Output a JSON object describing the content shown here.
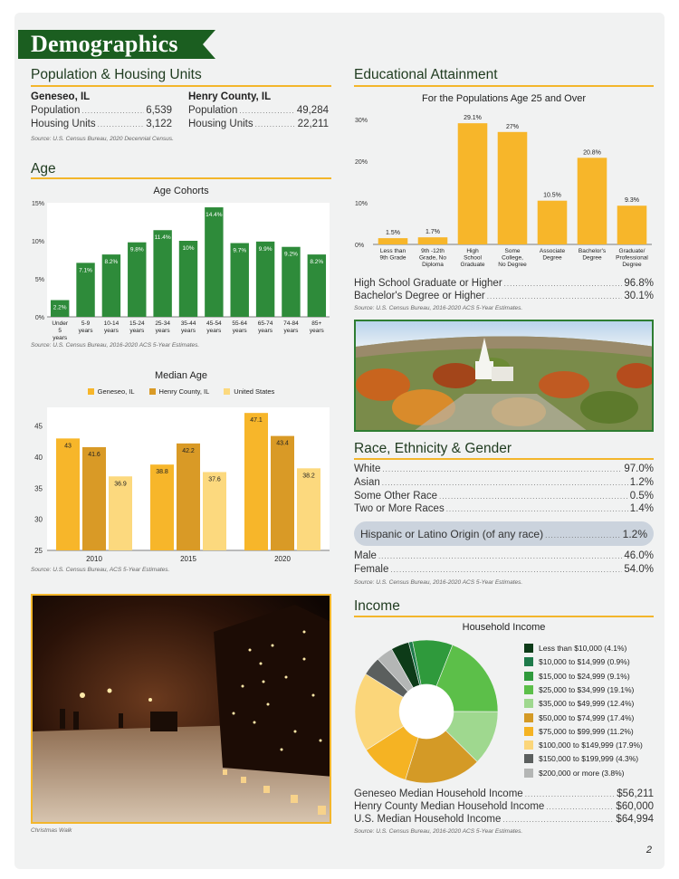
{
  "page": {
    "banner_title": "Demographics",
    "page_number": "2",
    "colors": {
      "green_dark": "#1b5e20",
      "gold": "#f3b62b",
      "bg": "#f1f2f2"
    }
  },
  "population": {
    "heading": "Population & Housing Units",
    "geneseo": {
      "name": "Geneseo, IL",
      "population_label": "Population",
      "population": "6,539",
      "housing_label": "Housing Units",
      "housing": "3,122"
    },
    "henry": {
      "name": "Henry County, IL",
      "population_label": "Population",
      "population": "49,284",
      "housing_label": "Housing Units",
      "housing": "22,211"
    },
    "source": "Source: U.S. Census Bureau, 2020 Decennial Census."
  },
  "age": {
    "heading": "Age",
    "source": "Source: U.S. Census Bureau, 2016-2020 ACS 5-Year Estimates.",
    "median_source": "Source: U.S. Census Bureau, ACS 5-Year Estimates."
  },
  "education": {
    "heading": "Educational Attainment",
    "rows": [
      {
        "label": "High School Graduate or Higher",
        "value": "96.8%"
      },
      {
        "label": "Bachelor's Degree or Higher",
        "value": "30.1%"
      }
    ],
    "source": "Source: U.S. Census Bureau, 2016-2020 ACS 5-Year Estimates."
  },
  "race": {
    "heading": "Race, Ethnicity & Gender",
    "rows": [
      {
        "label": "White",
        "value": "97.0%"
      },
      {
        "label": "Asian",
        "value": "1.2%"
      },
      {
        "label": "Some Other Race",
        "value": "0.5%"
      },
      {
        "label": "Two or More Races",
        "value": "1.4%"
      }
    ],
    "hispanic": {
      "label": "Hispanic or Latino Origin (of any race)",
      "value": "1.2%"
    },
    "gender": [
      {
        "label": "Male",
        "value": "46.0%"
      },
      {
        "label": "Female",
        "value": "54.0%"
      }
    ],
    "source": "Source: U.S. Census Bureau, 2016-2020 ACS 5-Year Estimates."
  },
  "income": {
    "heading": "Income",
    "rows": [
      {
        "label": "Geneseo Median Household Income",
        "value": "$56,211"
      },
      {
        "label": "Henry County Median Household Income",
        "value": "$60,000"
      },
      {
        "label": "U.S. Median Household Income",
        "value": "$64,994"
      }
    ],
    "source": "Source: U.S. Census Bureau, 2016-2020 ACS 5-Year Estimates."
  },
  "photos": {
    "christmas_caption": "Christmas Walk"
  },
  "chart_data": [
    {
      "id": "age_cohorts",
      "type": "bar",
      "title": "Age Cohorts",
      "categories": [
        "Under 5 years",
        "5-9 years",
        "10-14 years",
        "15-24 years",
        "25-34 years",
        "35-44 years",
        "45-54 years",
        "55-64 years",
        "65-74 years",
        "74-84 years",
        "85+ years"
      ],
      "values": [
        2.2,
        7.1,
        8.2,
        9.8,
        11.4,
        10,
        14.4,
        9.7,
        9.9,
        9.2,
        8.2
      ],
      "labels": [
        "2.2%",
        "7.1%",
        "8.2%",
        "9.8%",
        "11.4%",
        "10%",
        "14.4%",
        "9.7%",
        "9.9%",
        "9.2%",
        "8.2%"
      ],
      "yticks": [
        "0%",
        "5%",
        "10%",
        "15%"
      ],
      "ylim": [
        0,
        15
      ],
      "color": "#2e8b3a"
    },
    {
      "id": "median_age",
      "type": "bar",
      "title": "Median Age",
      "categories": [
        "2010",
        "2015",
        "2020"
      ],
      "series": [
        {
          "name": "Geneseo, IL",
          "values": [
            43,
            38.8,
            47.1
          ],
          "color": "#f7b62a"
        },
        {
          "name": "Henry County, IL",
          "values": [
            41.6,
            42.2,
            43.4
          ],
          "color": "#d99a26"
        },
        {
          "name": "United States",
          "values": [
            36.9,
            37.6,
            38.2
          ],
          "color": "#fcd97e"
        }
      ],
      "yticks": [
        "25",
        "30",
        "35",
        "40",
        "45"
      ],
      "ylim": [
        25,
        48
      ]
    },
    {
      "id": "education",
      "type": "bar",
      "title": "For the Populations Age 25 and Over",
      "categories": [
        "Less than 9th Grade",
        "9th -12th Grade, No Diploma",
        "High School Graduate",
        "Some College, No Degree",
        "Associate Degree",
        "Bachelor's Degree",
        "Graduate/ Professional Degree"
      ],
      "values": [
        1.5,
        1.7,
        29.1,
        27,
        10.5,
        20.8,
        9.3
      ],
      "labels": [
        "1.5%",
        "1.7%",
        "29.1%",
        "27%",
        "10.5%",
        "20.8%",
        "9.3%"
      ],
      "yticks": [
        "0%",
        "10%",
        "20%",
        "30%"
      ],
      "ylim": [
        0,
        30
      ],
      "color": "#f7b62a"
    },
    {
      "id": "household_income",
      "type": "pie",
      "title": "Household Income",
      "series": [
        {
          "name": "Less than $10,000 (4.1%)",
          "value": 4.1,
          "color": "#0d3b18"
        },
        {
          "name": "$10,000 to $14,999 (0.9%)",
          "value": 0.9,
          "color": "#1e7a4a"
        },
        {
          "name": "$15,000 to $24,999 (9.1%)",
          "value": 9.1,
          "color": "#2f9a3c"
        },
        {
          "name": "$25,000 to $34,999 (19.1%)",
          "value": 19.1,
          "color": "#5cbf49"
        },
        {
          "name": "$35,000 to $49,999 (12.4%)",
          "value": 12.4,
          "color": "#9fd88f"
        },
        {
          "name": "$50,000 to $74,999 (17.4%)",
          "value": 17.4,
          "color": "#d49a26"
        },
        {
          "name": "$75,000 to $99,999 (11.2%)",
          "value": 11.2,
          "color": "#f5b323"
        },
        {
          "name": "$100,000 to $149,999 (17.9%)",
          "value": 17.9,
          "color": "#fbd67a"
        },
        {
          "name": "$150,000 to $199,999 (4.3%)",
          "value": 4.3,
          "color": "#5b5f5e"
        },
        {
          "name": "$200,000 or more (3.8%)",
          "value": 3.8,
          "color": "#b4b6b5"
        }
      ]
    }
  ]
}
